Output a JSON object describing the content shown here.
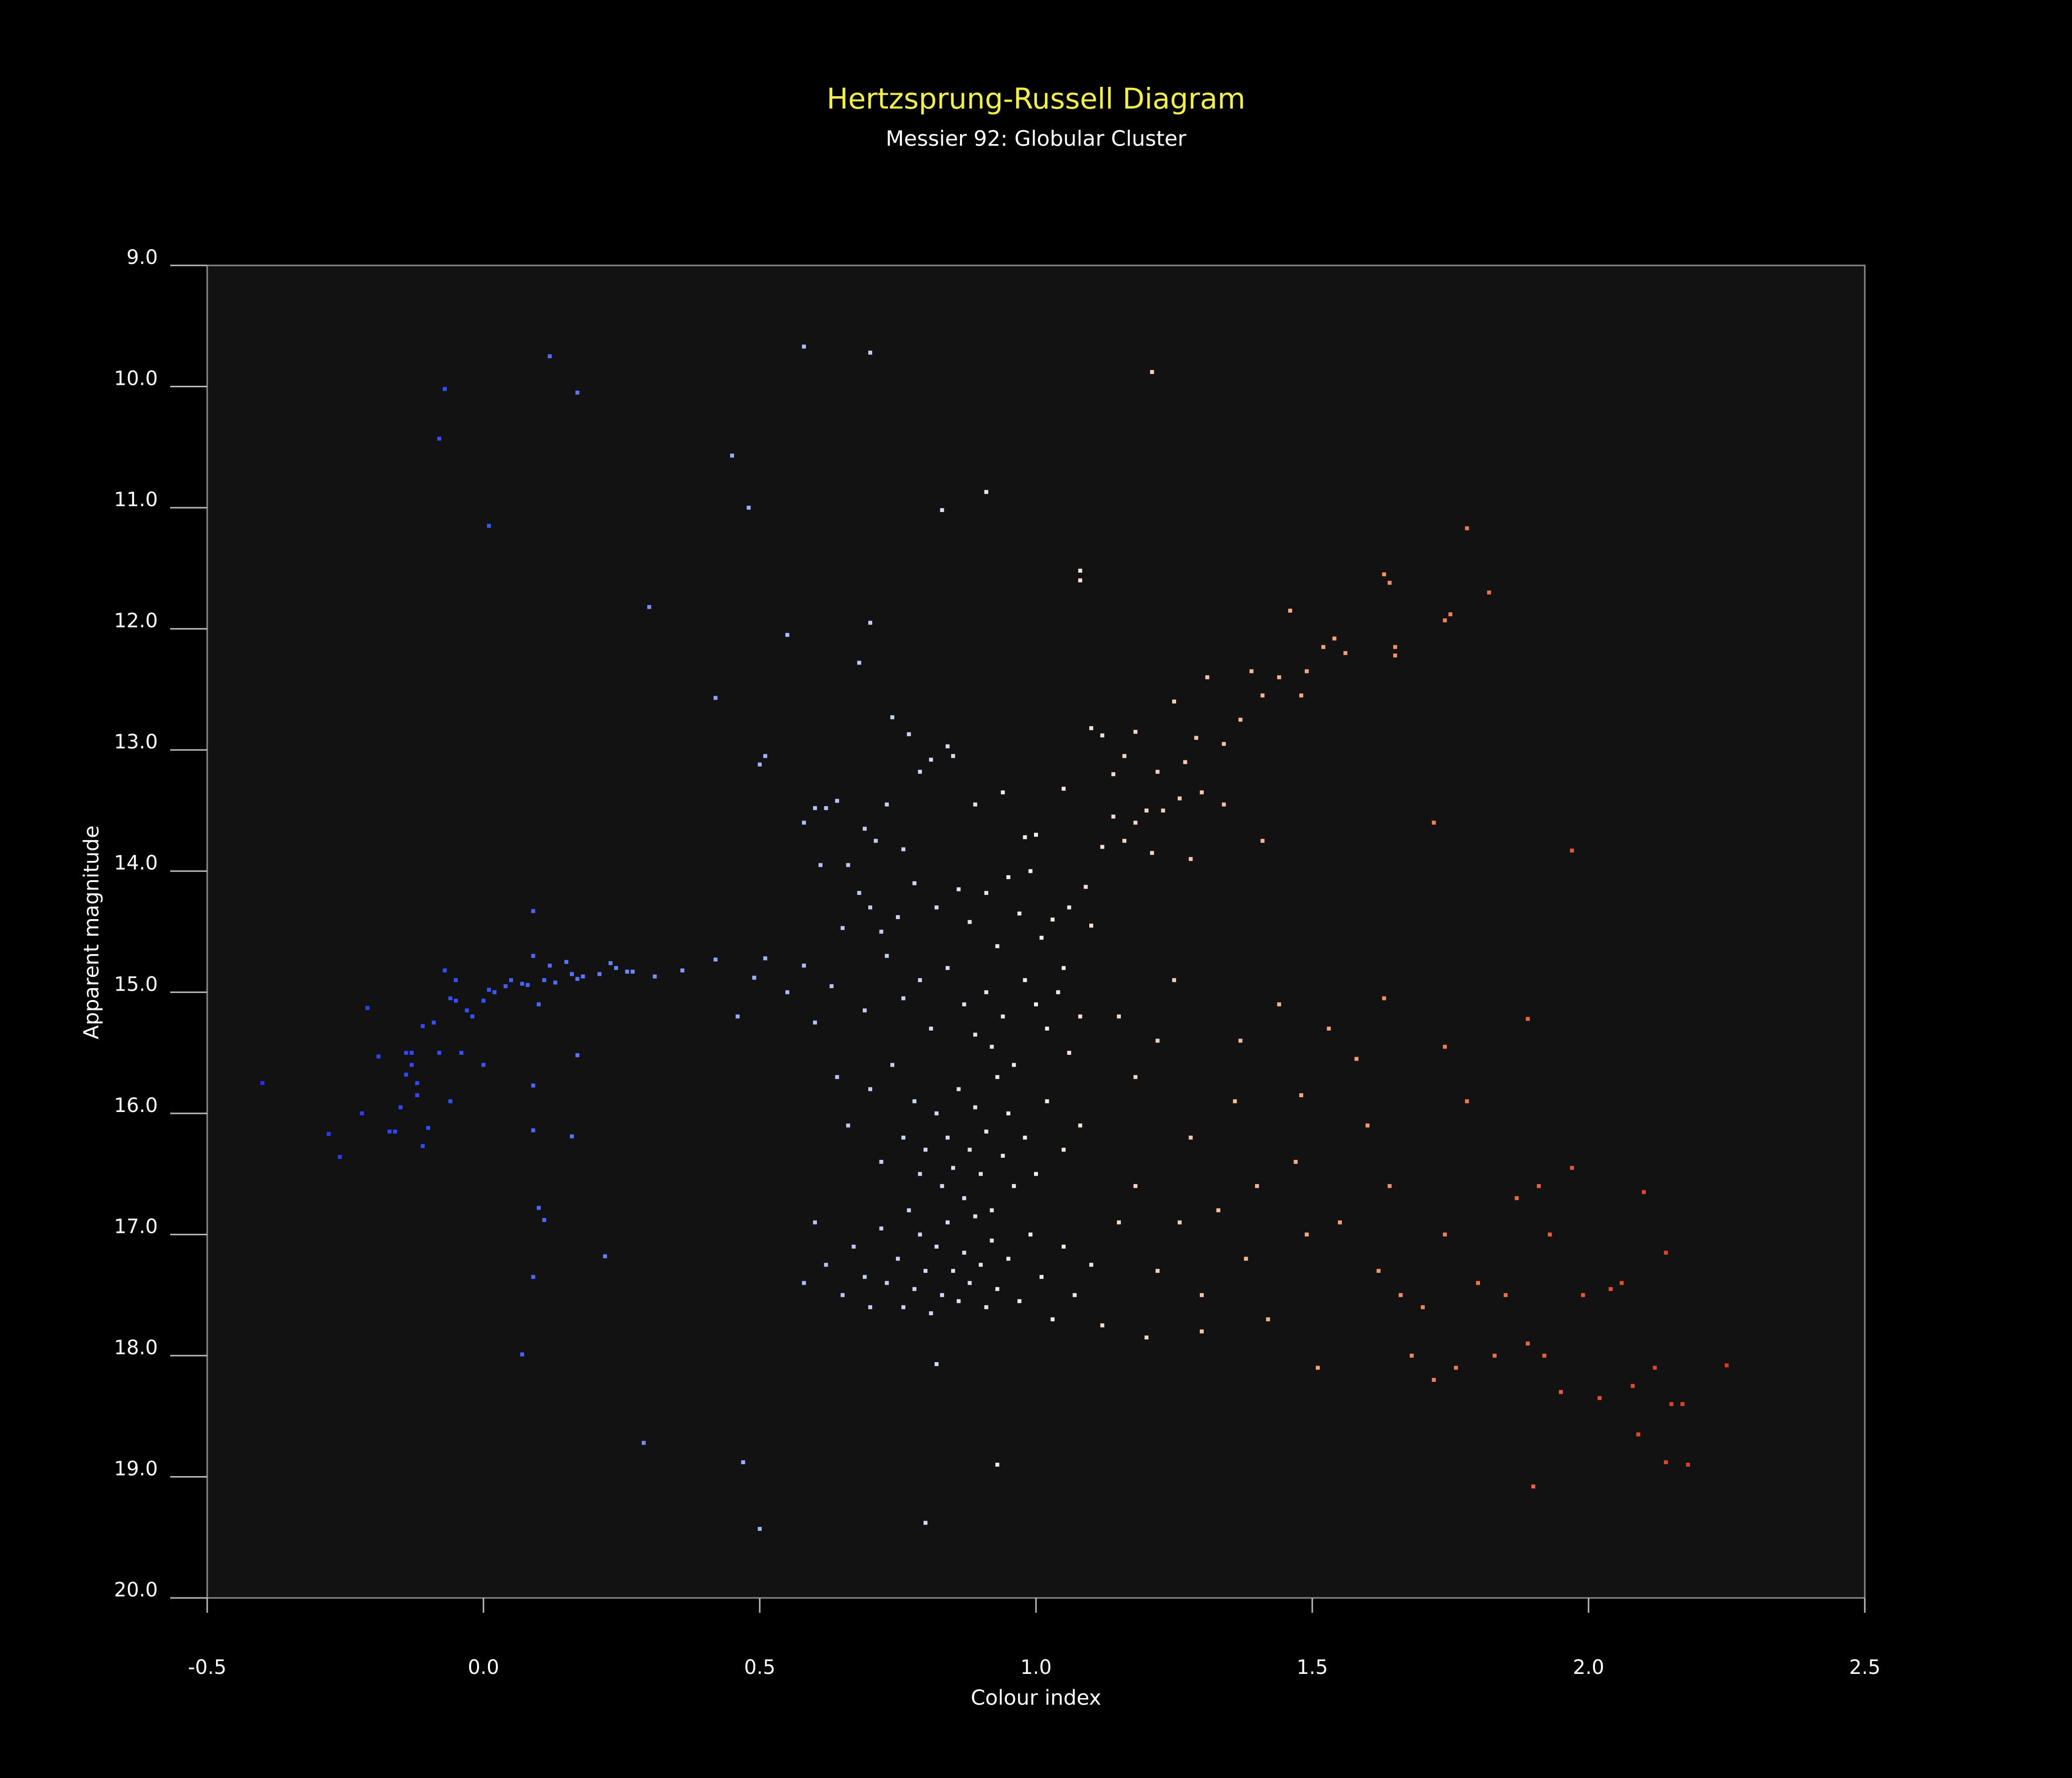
{
  "chart_data": {
    "type": "scatter",
    "title": "Hertzsprung-Russell Diagram",
    "subtitle": "Messier 92: Globular Cluster",
    "x_label": "Colour index",
    "y_label": "Apparent magnitude",
    "xlim": [
      -0.5,
      2.5
    ],
    "ylim": [
      9,
      20
    ],
    "invert_y": true,
    "xticks": [
      -0.5,
      {
        "value": 0,
        "label": "0.0"
      },
      0.5,
      {
        "value": 1,
        "label": "1.0"
      },
      1.5,
      {
        "value": 2,
        "label": "2.0"
      },
      2.5
    ],
    "yticks": [
      {
        "value": 9,
        "label": "9.0"
      },
      {
        "value": 10,
        "label": "10.0"
      },
      {
        "value": 11,
        "label": "11.0"
      },
      {
        "value": 12,
        "label": "12.0"
      },
      {
        "value": 13,
        "label": "13.0"
      },
      {
        "value": 14,
        "label": "14.0"
      },
      {
        "value": 15,
        "label": "15.0"
      },
      {
        "value": 16,
        "label": "16.0"
      },
      {
        "value": 17,
        "label": "17.0"
      },
      {
        "value": 18,
        "label": "18.0"
      },
      {
        "value": 19,
        "label": "19.0"
      },
      {
        "value": 20,
        "label": "20.0"
      }
    ],
    "grid": false,
    "title_color": "#f2f23a",
    "colormap": [
      "#1a28ff",
      "#3656ff",
      "#9fb4ff",
      "#f2f0e8",
      "#f4a878",
      "#e8542c",
      "#d01810"
    ],
    "x": [
      0.12,
      -0.07,
      0.17,
      -0.08,
      0.01,
      0.45,
      0.48,
      0.58,
      0.7,
      0.83,
      0.91,
      1.21,
      1.08,
      1.08,
      0.3,
      0.55,
      0.7,
      0.68,
      0.42,
      0.51,
      0.5,
      1.78,
      1.82,
      0.29,
      0.47,
      0.5,
      0.8,
      0.93,
      1.9,
      0.07,
      0.09,
      0.22,
      0.1,
      0.11,
      0.09,
      0.16,
      0.09,
      0.17,
      0.09,
      1.72,
      1.97,
      0.82,
      -0.4,
      -0.28,
      -0.26,
      -0.22,
      -0.21,
      -0.19,
      -0.17,
      -0.16,
      -0.15,
      -0.14,
      -0.13,
      -0.13,
      -0.12,
      -0.12,
      -0.11,
      -0.11,
      -0.1,
      -0.09,
      -0.08,
      -0.07,
      -0.06,
      -0.05,
      -0.05,
      -0.04,
      -0.03,
      -0.02,
      0.0,
      0.0,
      0.01,
      0.02,
      0.04,
      0.05,
      0.07,
      0.08,
      0.09,
      0.1,
      0.11,
      0.12,
      0.13,
      0.15,
      0.16,
      0.17,
      0.18,
      0.21,
      0.23,
      0.24,
      0.26,
      0.27,
      0.31,
      0.36,
      0.42,
      0.46,
      0.49,
      0.51,
      0.55,
      0.58,
      -0.06,
      -0.14,
      0.58,
      0.6,
      0.62,
      0.64,
      0.61,
      0.66,
      0.69,
      0.71,
      0.73,
      0.76,
      0.79,
      0.81,
      0.84,
      0.85,
      0.74,
      0.77,
      0.89,
      0.94,
      0.98,
      1.0,
      1.05,
      0.65,
      0.68,
      0.7,
      0.72,
      0.75,
      0.78,
      0.82,
      0.86,
      0.88,
      0.91,
      0.93,
      0.95,
      0.97,
      0.99,
      1.01,
      1.03,
      1.05,
      1.06,
      1.09,
      1.1,
      0.63,
      0.69,
      0.73,
      0.76,
      0.79,
      0.81,
      0.84,
      0.87,
      0.89,
      0.91,
      0.92,
      0.94,
      0.96,
      0.98,
      1.0,
      1.02,
      1.04,
      1.06,
      1.08,
      0.6,
      0.64,
      0.66,
      0.7,
      0.72,
      0.74,
      0.76,
      0.78,
      0.79,
      0.8,
      0.82,
      0.83,
      0.84,
      0.85,
      0.86,
      0.87,
      0.88,
      0.89,
      0.9,
      0.91,
      0.92,
      0.93,
      0.94,
      0.95,
      0.96,
      0.98,
      1.0,
      1.02,
      1.05,
      1.08,
      0.58,
      0.6,
      0.62,
      0.65,
      0.67,
      0.69,
      0.7,
      0.72,
      0.73,
      0.75,
      0.76,
      0.77,
      0.78,
      0.79,
      0.8,
      0.81,
      0.82,
      0.83,
      0.84,
      0.85,
      0.86,
      0.87,
      0.88,
      0.89,
      0.9,
      0.91,
      0.92,
      0.93,
      0.95,
      0.97,
      0.99,
      1.01,
      1.03,
      1.05,
      1.07,
      1.1,
      1.12,
      1.15,
      1.1,
      1.12,
      1.14,
      1.16,
      1.18,
      1.2,
      1.22,
      1.25,
      1.27,
      1.29,
      1.31,
      1.34,
      1.37,
      1.39,
      1.41,
      1.44,
      1.46,
      1.48,
      1.49,
      1.52,
      1.54,
      1.56,
      1.63,
      1.64,
      1.65,
      1.65,
      1.74,
      1.75,
      1.12,
      1.14,
      1.16,
      1.18,
      1.21,
      1.23,
      1.26,
      1.28,
      1.3,
      1.34,
      1.41,
      1.15,
      1.18,
      1.22,
      1.25,
      1.28,
      1.18,
      1.22,
      1.26,
      1.3,
      1.33,
      1.36,
      1.38,
      1.4,
      1.42,
      1.44,
      1.47,
      1.49,
      1.51,
      1.53,
      1.55,
      1.58,
      1.6,
      1.62,
      1.64,
      1.66,
      1.68,
      1.7,
      1.72,
      1.74,
      1.76,
      1.78,
      1.8,
      1.83,
      1.85,
      1.87,
      1.89,
      1.91,
      1.93,
      1.95,
      1.97,
      1.99,
      2.02,
      2.04,
      2.06,
      2.08,
      2.1,
      2.12,
      2.14,
      2.15,
      2.17,
      2.18,
      2.25,
      1.89,
      1.74,
      1.63,
      1.48,
      1.37,
      2.14,
      2.09,
      1.92,
      1.3,
      1.2
    ],
    "y": [
      9.75,
      10.02,
      10.05,
      10.43,
      11.15,
      10.57,
      11.0,
      9.67,
      9.72,
      11.02,
      10.87,
      9.88,
      11.52,
      11.6,
      11.82,
      12.05,
      11.95,
      12.28,
      12.57,
      13.05,
      13.12,
      11.17,
      11.7,
      18.72,
      18.88,
      19.43,
      19.38,
      18.9,
      19.08,
      17.99,
      17.35,
      17.18,
      16.78,
      16.88,
      16.14,
      16.19,
      15.77,
      15.52,
      14.33,
      13.6,
      13.83,
      18.07,
      15.75,
      16.17,
      16.36,
      16.0,
      15.13,
      15.53,
      16.15,
      16.15,
      15.95,
      15.68,
      15.5,
      15.6,
      15.75,
      15.85,
      16.27,
      15.28,
      16.12,
      15.25,
      15.5,
      14.82,
      15.05,
      15.07,
      14.9,
      15.5,
      15.15,
      15.2,
      15.6,
      15.07,
      14.98,
      15.0,
      14.95,
      14.9,
      14.93,
      14.94,
      14.7,
      15.1,
      14.9,
      14.78,
      14.92,
      14.75,
      14.85,
      14.89,
      14.87,
      14.85,
      14.76,
      14.8,
      14.83,
      14.83,
      14.87,
      14.82,
      14.73,
      15.2,
      14.88,
      14.72,
      15.0,
      14.78,
      15.9,
      15.5,
      13.6,
      13.48,
      13.48,
      13.42,
      13.95,
      13.95,
      13.65,
      13.75,
      13.45,
      13.82,
      13.18,
      13.08,
      12.97,
      13.05,
      12.73,
      12.87,
      13.45,
      13.35,
      13.72,
      13.7,
      13.32,
      14.47,
      14.18,
      14.3,
      14.5,
      14.38,
      14.1,
      14.3,
      14.15,
      14.42,
      14.18,
      14.62,
      14.05,
      14.35,
      14.0,
      14.55,
      14.4,
      14.8,
      14.3,
      14.13,
      14.45,
      14.95,
      15.15,
      14.7,
      15.05,
      14.9,
      15.3,
      14.8,
      15.1,
      15.35,
      15.0,
      15.45,
      15.2,
      15.6,
      14.9,
      15.1,
      15.3,
      15.0,
      15.5,
      15.2,
      15.25,
      15.7,
      16.1,
      15.8,
      16.4,
      15.6,
      16.2,
      15.9,
      16.5,
      16.3,
      16.0,
      16.6,
      16.2,
      16.45,
      15.8,
      16.7,
      16.3,
      15.95,
      16.5,
      16.15,
      16.8,
      15.7,
      16.35,
      16.0,
      16.6,
      16.2,
      16.5,
      15.9,
      16.3,
      16.1,
      17.4,
      16.9,
      17.25,
      17.5,
      17.1,
      17.35,
      17.6,
      16.95,
      17.4,
      17.2,
      17.6,
      16.8,
      17.45,
      17.0,
      17.3,
      17.65,
      17.1,
      17.5,
      16.9,
      17.3,
      17.55,
      17.15,
      17.4,
      16.85,
      17.25,
      17.6,
      17.05,
      17.45,
      17.2,
      17.55,
      17.0,
      17.35,
      17.7,
      17.1,
      17.5,
      17.25,
      17.75,
      16.9,
      12.82,
      12.88,
      13.2,
      13.05,
      12.85,
      13.5,
      13.18,
      12.6,
      13.1,
      12.9,
      12.4,
      12.95,
      12.75,
      12.35,
      12.55,
      12.4,
      11.85,
      12.55,
      12.35,
      12.15,
      12.08,
      12.2,
      11.55,
      11.62,
      12.15,
      12.22,
      11.93,
      11.88,
      13.8,
      13.55,
      13.75,
      13.6,
      13.85,
      13.5,
      13.4,
      13.9,
      13.35,
      13.45,
      13.75,
      15.2,
      15.7,
      15.4,
      14.9,
      16.2,
      16.6,
      17.3,
      16.9,
      17.5,
      16.8,
      15.9,
      17.2,
      16.6,
      17.7,
      15.1,
      16.4,
      17.0,
      18.1,
      15.3,
      16.9,
      15.55,
      16.1,
      17.3,
      16.6,
      17.5,
      18.0,
      17.6,
      18.2,
      17.0,
      18.1,
      15.9,
      17.4,
      18.0,
      17.5,
      16.7,
      17.9,
      16.6,
      17.0,
      18.3,
      16.45,
      17.5,
      18.35,
      17.45,
      17.4,
      18.25,
      16.65,
      18.1,
      17.15,
      18.4,
      18.4,
      18.9,
      18.08,
      15.22,
      15.45,
      15.05,
      15.85,
      15.4,
      18.88,
      18.65,
      18.0,
      17.8,
      17.85
    ]
  }
}
